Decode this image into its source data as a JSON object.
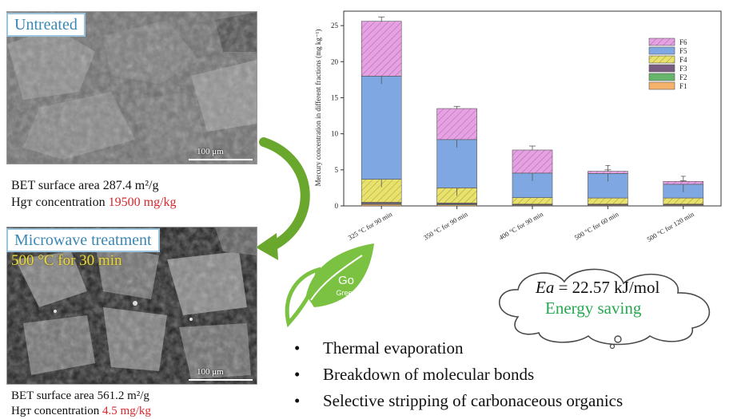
{
  "panels": {
    "top_label": "Untreated",
    "bottom_label": "Microwave treatment",
    "bottom_condition": "500 °C for 30 min",
    "scale_top": "100 μm",
    "scale_bottom": "100 μm"
  },
  "untreated": {
    "bet_prefix": "BET surface area ",
    "bet_value": "287.4 m²/g",
    "hg_prefix": "Hgт concentration ",
    "hg_value": "19500 mg/kg"
  },
  "treated": {
    "bet_prefix": "BET surface area ",
    "bet_value": "561.2 m²/g",
    "hg_prefix": "Hgт concentration ",
    "hg_value": "4.5 mg/kg"
  },
  "colors": {
    "accent_red": "#d9262c",
    "label_blue": "#3a86b4",
    "green": "#27a850",
    "arrow_green": "#6aa82d"
  },
  "chart_data": {
    "type": "bar",
    "stacked": true,
    "ylabel": "Mercury concentration in different fractions (mg kg⁻¹)",
    "ylim": [
      0,
      27
    ],
    "yticks": [
      0,
      5,
      10,
      15,
      20,
      25
    ],
    "categories": [
      "325 °C for 90 min",
      "350 °C for 90 min",
      "400 °C for 90 min",
      "500 °C for 60 min",
      "500 °C for 120 min"
    ],
    "series": [
      {
        "name": "F1",
        "color": "#f5b26b",
        "values": [
          0.2,
          0.15,
          0.1,
          0.1,
          0.1
        ]
      },
      {
        "name": "F2",
        "color": "#66b56a",
        "values": [
          0.1,
          0.1,
          0.05,
          0.05,
          0.05
        ]
      },
      {
        "name": "F3",
        "color": "#7a5c80",
        "values": [
          0.2,
          0.15,
          0.1,
          0.1,
          0.1
        ]
      },
      {
        "name": "F4",
        "color": "#e9e26a",
        "values": [
          3.2,
          2.1,
          0.9,
          0.85,
          0.85
        ]
      },
      {
        "name": "F5",
        "color": "#7fa8e2",
        "values": [
          14.3,
          6.7,
          3.4,
          3.4,
          1.9
        ]
      },
      {
        "name": "F6",
        "color": "#e7a0e4",
        "values": [
          7.6,
          4.3,
          3.2,
          0.3,
          0.4
        ]
      }
    ],
    "error_tops": [
      26.2,
      13.8,
      8.3,
      5.0,
      3.5
    ],
    "legend_position": "top-right"
  },
  "cloud": {
    "ea_symbol": "Ea",
    "ea_value": " = 22.57 kJ/mol",
    "saving": "Energy saving"
  },
  "logo": {
    "go": "Go",
    "green": "Green"
  },
  "bullets": [
    "Thermal evaporation",
    "Breakdown of molecular bonds",
    "Selective stripping of carbonaceous organics"
  ]
}
